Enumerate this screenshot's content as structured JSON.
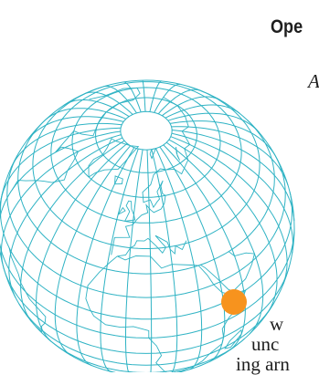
{
  "map": {
    "label": "",
    "grid_color": "#2fb3c4",
    "marker_color": "#f7931e",
    "marker_location": "East Africa"
  },
  "text": {
    "heading": "Ope",
    "fragment_1": "A",
    "fragment_2": "w",
    "fragment_3": "unc",
    "fragment_4": "ing arn"
  }
}
